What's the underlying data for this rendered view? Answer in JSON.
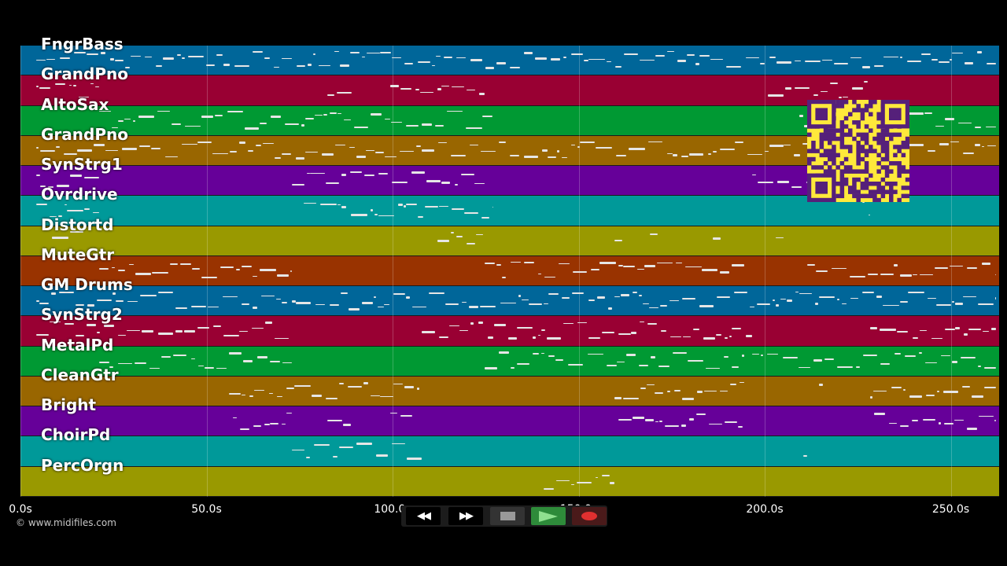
{
  "tracks": [
    {
      "name": "FngrBass",
      "color": "#006699"
    },
    {
      "name": "GrandPno",
      "color": "#990033"
    },
    {
      "name": "AltoSax",
      "color": "#009933"
    },
    {
      "name": "GrandPno",
      "color": "#996600"
    },
    {
      "name": "SynStrg1",
      "color": "#660099"
    },
    {
      "name": "Ovrdrive",
      "color": "#009999"
    },
    {
      "name": "Distortd",
      "color": "#999900"
    },
    {
      "name": "MuteGtr",
      "color": "#993300"
    },
    {
      "name": "GM Drums",
      "color": "#006699"
    },
    {
      "name": "SynStrg2",
      "color": "#990033"
    },
    {
      "name": "MetalPd",
      "color": "#009933"
    },
    {
      "name": "CleanGtr",
      "color": "#996600"
    },
    {
      "name": "Bright",
      "color": "#660099"
    },
    {
      "name": "ChoirPd",
      "color": "#009999"
    },
    {
      "name": "PercOrgn",
      "color": "#999900"
    }
  ],
  "time_axis": {
    "ticks": [
      "0.0s",
      "50.0s",
      "100.0s",
      "150.0s",
      "200.0s",
      "250.0s"
    ],
    "tick_values": [
      0,
      50,
      100,
      150,
      200,
      250
    ],
    "max_seconds": 263
  },
  "copyright": "© www.midifiles.com",
  "transport": {
    "rewind_icon": "rewind-icon",
    "fast_forward_icon": "fast-forward-icon",
    "stop_icon": "stop-icon",
    "play_icon": "play-icon",
    "record_icon": "record-icon",
    "play_color": "#2e8b3a",
    "record_color": "#e03030"
  },
  "qr_code": {
    "fg": "#55207a",
    "bg": "#ffe93b"
  }
}
